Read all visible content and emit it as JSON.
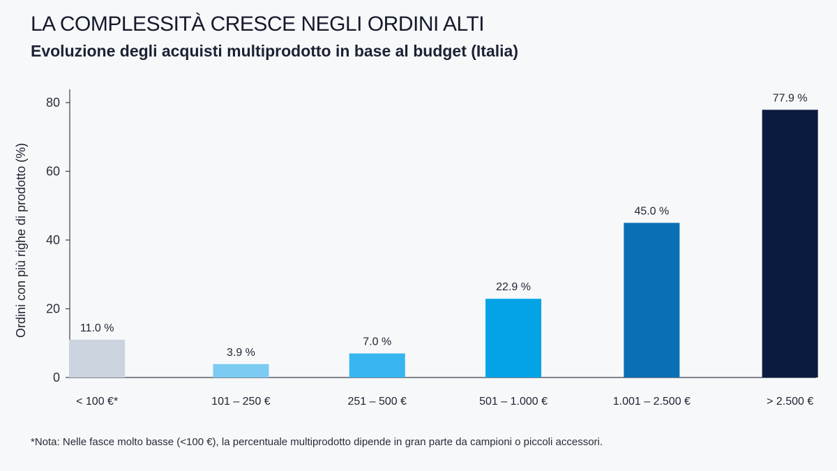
{
  "title": "LA COMPLESSITÀ CRESCE NEGLI ORDINI ALTI",
  "subtitle": "Evoluzione degli acquisti multiprodotto in base al budget (Italia)",
  "note": "*Nota: Nelle fasce molto basse (<100 €), la percentuale multiprodotto dipende in gran parte da campioni o piccoli accessori.",
  "chart_data": {
    "type": "bar",
    "title": "LA COMPLESSITÀ CRESCE NEGLI ORDINI ALTI",
    "subtitle": "Evoluzione degli acquisti multiprodotto in base al budget (Italia)",
    "xlabel": "",
    "ylabel": "Ordini con più righe di prodotto (%)",
    "ylim": [
      0,
      80
    ],
    "yticks": [
      0,
      20,
      40,
      60,
      80
    ],
    "grid": false,
    "legend": "none",
    "categories": [
      "< 100 €*",
      "101 – 250 €",
      "251 – 500 €",
      "501 – 1.000 €",
      "1.001 – 2.500 €",
      "> 2.500 €"
    ],
    "values": [
      11.0,
      3.9,
      7.0,
      22.9,
      45.0,
      77.9
    ],
    "data_labels": [
      "11.0 %",
      "3.9 %",
      "7.0 %",
      "22.9 %",
      "45.0 %",
      "77.9 %"
    ],
    "colors": [
      "#cbd3de",
      "#7ccbf3",
      "#36b5f0",
      "#04a3e6",
      "#0a6fb5",
      "#0b1b3f"
    ]
  }
}
